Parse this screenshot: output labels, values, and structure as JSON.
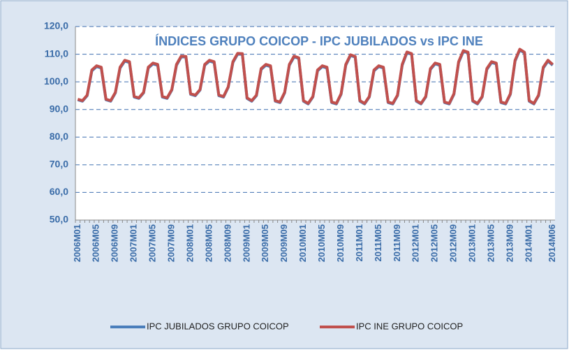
{
  "chart_data": {
    "type": "line",
    "title": "ÍNDICES GRUPO COICOP - IPC JUBILADOS vs IPC INE",
    "categories": [
      "2006M01",
      null,
      null,
      null,
      "2006M05",
      null,
      null,
      null,
      "2006M09",
      null,
      null,
      null,
      "2007M01",
      null,
      null,
      null,
      "2007M05",
      null,
      null,
      null,
      "2007M09",
      null,
      null,
      null,
      "2008M01",
      null,
      null,
      null,
      "2008M05",
      null,
      null,
      null,
      "2008M09",
      null,
      null,
      null,
      "2009M01",
      null,
      null,
      null,
      "2009M05",
      null,
      null,
      null,
      "2009M09",
      null,
      null,
      null,
      "2010M01",
      null,
      null,
      null,
      "2010M05",
      null,
      null,
      null,
      "2010M09",
      null,
      null,
      null,
      "2011M01",
      null,
      null,
      null,
      "2011M05",
      null,
      null,
      null,
      "2011M09",
      null,
      null,
      null,
      "2012M01",
      null,
      null,
      null,
      "2012M05",
      null,
      null,
      null,
      "2012M09",
      null,
      null,
      null,
      "2013M01",
      null,
      null,
      null,
      "2013M05",
      null,
      null,
      null,
      "2013M09",
      null,
      null,
      null,
      "2014M01",
      null,
      null,
      null,
      null,
      "2014M06"
    ],
    "series": [
      {
        "name": "IPC JUBILADOS GRUPO COICOP",
        "color": "#4a7ebb",
        "values": [
          93.5,
          93,
          95,
          104,
          105.5,
          105,
          93.5,
          93,
          96,
          105,
          107.5,
          107,
          94.5,
          94,
          96,
          105,
          106.5,
          106,
          94.5,
          94,
          97,
          106,
          109,
          109,
          95.5,
          95,
          97,
          106,
          107.5,
          107,
          95,
          94.5,
          98,
          107,
          110,
          110,
          94,
          93,
          95,
          104.5,
          106,
          105.5,
          93,
          92.5,
          96,
          106,
          109,
          108.5,
          93,
          92,
          94.5,
          104,
          105.5,
          105,
          92.5,
          92,
          95.5,
          106,
          109.5,
          109,
          93,
          92,
          94.5,
          104,
          105.5,
          105,
          92.5,
          92,
          95,
          106,
          110.5,
          110,
          93,
          92,
          94.5,
          104.5,
          106.5,
          106,
          92.5,
          92,
          95.5,
          107,
          111,
          110.5,
          93,
          92,
          94.5,
          104.5,
          107,
          106.5,
          92.5,
          92,
          95.5,
          107.5,
          111.5,
          110.5,
          93,
          92,
          95,
          105,
          107.5,
          106
        ]
      },
      {
        "name": "IPC INE GRUPO COICOP",
        "color": "#c0504d",
        "values": [
          93.7,
          93.2,
          95.2,
          104.3,
          105.8,
          105.3,
          93.7,
          93.2,
          96.2,
          105.3,
          107.8,
          107.3,
          94.7,
          94.2,
          96.2,
          105.3,
          106.8,
          106.3,
          94.7,
          94.2,
          97.2,
          106.3,
          109.3,
          109.2,
          95.7,
          95.2,
          97.2,
          106.3,
          107.8,
          107.3,
          95.2,
          94.7,
          98.2,
          107.3,
          110.3,
          110.2,
          94.2,
          93.2,
          95.2,
          104.8,
          106.3,
          105.8,
          93.2,
          92.7,
          96.2,
          106.3,
          109.3,
          108.7,
          93.2,
          92.2,
          94.7,
          104.3,
          105.8,
          105.3,
          92.7,
          92.2,
          95.7,
          106.3,
          109.8,
          109.2,
          93.2,
          92.2,
          94.7,
          104.3,
          105.8,
          105.3,
          92.7,
          92.2,
          95.2,
          106.3,
          110.8,
          110.2,
          93.2,
          92.2,
          94.7,
          104.8,
          106.8,
          106.3,
          92.7,
          92.2,
          95.7,
          107.3,
          111.3,
          110.7,
          93.2,
          92.2,
          94.7,
          104.8,
          107.3,
          106.8,
          92.7,
          92.2,
          95.7,
          107.8,
          111.8,
          110.7,
          93.2,
          92.2,
          95.2,
          105.3,
          107.8,
          106.3
        ]
      }
    ],
    "ylim": [
      50,
      120
    ],
    "yticks": [
      {
        "value": 50,
        "label": "50,0"
      },
      {
        "value": 60,
        "label": "60,0"
      },
      {
        "value": 70,
        "label": "70,0"
      },
      {
        "value": 80,
        "label": "80,0"
      },
      {
        "value": 90,
        "label": "90,0"
      },
      {
        "value": 100,
        "label": "100,0"
      },
      {
        "value": 110,
        "label": "110,0"
      },
      {
        "value": 120,
        "label": "120,0"
      }
    ],
    "grid": true,
    "legend": "bottom"
  }
}
